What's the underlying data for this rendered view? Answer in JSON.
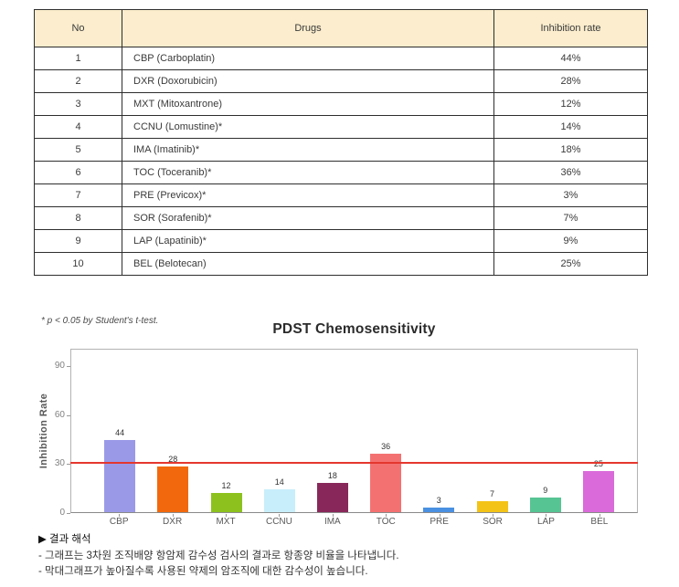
{
  "table": {
    "headers": [
      "No",
      "Drugs",
      "Inhibition rate"
    ],
    "header_bg": "#fbedcd",
    "rows": [
      {
        "no": "1",
        "drug": "CBP (Carboplatin)",
        "rate": "44%"
      },
      {
        "no": "2",
        "drug": "DXR (Doxorubicin)",
        "rate": "28%"
      },
      {
        "no": "3",
        "drug": "MXT (Mitoxantrone)",
        "rate": "12%"
      },
      {
        "no": "4",
        "drug": "CCNU (Lomustine)*",
        "rate": "14%"
      },
      {
        "no": "5",
        "drug": "IMA (Imatinib)*",
        "rate": "18%"
      },
      {
        "no": "6",
        "drug": "TOC (Toceranib)*",
        "rate": "36%"
      },
      {
        "no": "7",
        "drug": "PRE (Previcox)*",
        "rate": "3%"
      },
      {
        "no": "8",
        "drug": "SOR (Sorafenib)*",
        "rate": "7%"
      },
      {
        "no": "9",
        "drug": "LAP (Lapatinib)*",
        "rate": "9%"
      },
      {
        "no": "10",
        "drug": "BEL (Belotecan)",
        "rate": "25%"
      }
    ]
  },
  "note": "* p < 0.05 by Student's t-test.",
  "chart_data": {
    "type": "bar",
    "title": "PDST Chemosensitivity",
    "xlabel": "",
    "ylabel": "Inhibition Rate",
    "categories": [
      "CBP",
      "DXR",
      "MXT",
      "CCNU",
      "IMA",
      "TOC",
      "PRE",
      "SOR",
      "LAP",
      "BEL"
    ],
    "values": [
      44,
      28,
      12,
      14,
      18,
      36,
      3,
      7,
      9,
      25
    ],
    "bar_colors": [
      "#9a99e8",
      "#f2690d",
      "#8dc21e",
      "#c8eefb",
      "#88285a",
      "#f47171",
      "#4a90e2",
      "#f3c317",
      "#56c493",
      "#da6ada"
    ],
    "yticks": [
      0,
      30,
      60,
      90
    ],
    "ylim": [
      0,
      100
    ],
    "grid": false,
    "legend_position": "none",
    "threshold_line": {
      "value": 30,
      "color": "#e4372e"
    }
  },
  "footer": {
    "heading": "▶ 결과 해석",
    "line1": "- 그래프는 3차원 조직배양 항암제 감수성 검사의 결과로 항종양 비율을 나타냅니다.",
    "line2": "- 막대그래프가 높아질수록 사용된 약제의 암조직에 대한 감수성이 높습니다."
  }
}
